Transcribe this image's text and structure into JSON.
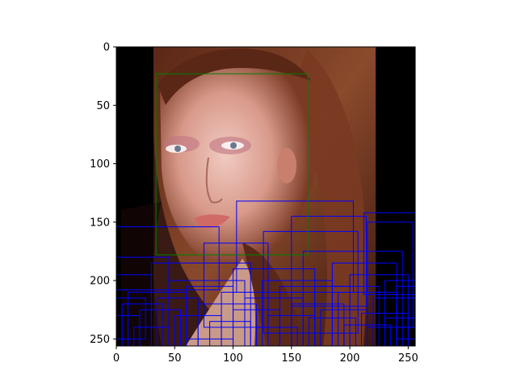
{
  "chart_data": {
    "type": "image",
    "image_description": "photo of a woman's face with long auburn hair on black background",
    "xlim": [
      0,
      256
    ],
    "ylim": [
      256,
      0
    ],
    "xticks": [
      0,
      50,
      100,
      150,
      200,
      250
    ],
    "yticks": [
      0,
      50,
      100,
      150,
      200,
      250
    ],
    "colors": {
      "ground_truth_box": "#008000",
      "detection_box": "#0000ff",
      "axis": "#000000"
    },
    "ground_truth_box": {
      "x1": 34,
      "y1": 23,
      "x2": 164,
      "y2": 178
    },
    "detection_boxes": [
      [
        103,
        132,
        203,
        210
      ],
      [
        0,
        154,
        88,
        208
      ],
      [
        126,
        158,
        207,
        245
      ],
      [
        212,
        142,
        256,
        212
      ],
      [
        150,
        145,
        214,
        222
      ],
      [
        75,
        168,
        130,
        240
      ],
      [
        0,
        180,
        45,
        256
      ],
      [
        30,
        185,
        115,
        256
      ],
      [
        160,
        175,
        245,
        256
      ],
      [
        215,
        150,
        254,
        240
      ],
      [
        100,
        190,
        170,
        256
      ],
      [
        185,
        185,
        240,
        256
      ],
      [
        0,
        195,
        30,
        256
      ],
      [
        45,
        200,
        110,
        256
      ],
      [
        125,
        200,
        185,
        256
      ],
      [
        60,
        205,
        100,
        250
      ],
      [
        140,
        205,
        200,
        256
      ],
      [
        200,
        195,
        250,
        256
      ],
      [
        10,
        210,
        60,
        256
      ],
      [
        90,
        210,
        150,
        256
      ],
      [
        170,
        205,
        225,
        256
      ],
      [
        230,
        200,
        256,
        256
      ],
      [
        0,
        215,
        25,
        250
      ],
      [
        35,
        215,
        70,
        256
      ],
      [
        110,
        215,
        160,
        256
      ],
      [
        190,
        210,
        240,
        256
      ],
      [
        220,
        215,
        256,
        256
      ],
      [
        5,
        220,
        40,
        256
      ],
      [
        70,
        220,
        120,
        256
      ],
      [
        150,
        220,
        195,
        256
      ],
      [
        240,
        205,
        256,
        250
      ],
      [
        20,
        225,
        55,
        256
      ],
      [
        100,
        225,
        140,
        256
      ],
      [
        175,
        225,
        215,
        256
      ],
      [
        210,
        228,
        250,
        256
      ],
      [
        0,
        230,
        20,
        256
      ],
      [
        50,
        230,
        90,
        256
      ],
      [
        130,
        230,
        170,
        256
      ],
      [
        165,
        232,
        205,
        256
      ],
      [
        230,
        232,
        256,
        256
      ],
      [
        80,
        235,
        115,
        256
      ],
      [
        195,
        238,
        235,
        256
      ],
      [
        15,
        240,
        45,
        256
      ],
      [
        120,
        240,
        155,
        256
      ],
      [
        240,
        240,
        256,
        256
      ]
    ]
  }
}
